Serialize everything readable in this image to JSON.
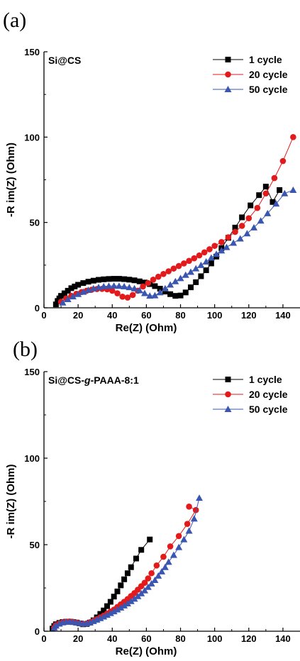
{
  "chart_data": [
    {
      "panel_label": "(a)",
      "type": "scatter",
      "title": "Si@CS",
      "xlabel": "Re(Z) (Ohm)",
      "ylabel": "-R im(Z) (Ohm)",
      "xlim": [
        0,
        150
      ],
      "ylim": [
        0,
        150
      ],
      "x_ticks": [
        0,
        20,
        40,
        60,
        80,
        100,
        120,
        140
      ],
      "y_ticks": [
        0,
        50,
        100,
        150
      ],
      "legend_position": "top-right",
      "series": [
        {
          "name": "1 cycle",
          "color": "#000000",
          "marker": "square",
          "points": [
            [
              7,
              2
            ],
            [
              8,
              4
            ],
            [
              9,
              5.5
            ],
            [
              10,
              7
            ],
            [
              12,
              8.5
            ],
            [
              14,
              10
            ],
            [
              16,
              11.5
            ],
            [
              18,
              12.5
            ],
            [
              20,
              13.5
            ],
            [
              23,
              14.5
            ],
            [
              26,
              15.3
            ],
            [
              29,
              15.9
            ],
            [
              32,
              16.4
            ],
            [
              35,
              16.7
            ],
            [
              38,
              16.9
            ],
            [
              41,
              17
            ],
            [
              44,
              17
            ],
            [
              47,
              16.8
            ],
            [
              50,
              16.5
            ],
            [
              53,
              16.1
            ],
            [
              56,
              15.5
            ],
            [
              59,
              14.8
            ],
            [
              62,
              13.9
            ],
            [
              65,
              12.7
            ],
            [
              68,
              11.2
            ],
            [
              71,
              9.5
            ],
            [
              74,
              8
            ],
            [
              77,
              7
            ],
            [
              80,
              7.2
            ],
            [
              83,
              9
            ],
            [
              86,
              12
            ],
            [
              89,
              15
            ],
            [
              92,
              18.5
            ],
            [
              95,
              22
            ],
            [
              98,
              26
            ],
            [
              101,
              30
            ],
            [
              104,
              35
            ],
            [
              108,
              41
            ],
            [
              112,
              47
            ],
            [
              116,
              53
            ],
            [
              121,
              60
            ],
            [
              126,
              66
            ],
            [
              130,
              71
            ],
            [
              134,
              62
            ],
            [
              138,
              69
            ]
          ]
        },
        {
          "name": "20 cycle",
          "color": "#e31a1c",
          "marker": "circle",
          "points": [
            [
              10,
              3.5
            ],
            [
              13,
              5.5
            ],
            [
              16,
              7
            ],
            [
              19,
              8.2
            ],
            [
              22,
              9.2
            ],
            [
              25,
              10
            ],
            [
              28,
              10.6
            ],
            [
              31,
              11
            ],
            [
              34,
              11.1
            ],
            [
              37,
              10.8
            ],
            [
              40,
              10
            ],
            [
              43,
              8.5
            ],
            [
              46,
              6.5
            ],
            [
              49,
              6
            ],
            [
              52,
              7.5
            ],
            [
              55,
              10
            ],
            [
              58,
              12.5
            ],
            [
              61,
              14.5
            ],
            [
              64,
              16.5
            ],
            [
              67,
              18.2
            ],
            [
              70,
              19.8
            ],
            [
              73,
              21.4
            ],
            [
              76,
              23
            ],
            [
              79,
              24.5
            ],
            [
              82,
              26
            ],
            [
              85,
              27.5
            ],
            [
              88,
              29
            ],
            [
              91,
              30.7
            ],
            [
              94,
              32.5
            ],
            [
              97,
              34.3
            ],
            [
              100,
              36.3
            ],
            [
              104,
              38.5
            ],
            [
              108,
              41.3
            ],
            [
              112,
              44.5
            ],
            [
              116,
              48
            ],
            [
              120,
              52.5
            ],
            [
              125,
              58.5
            ],
            [
              130,
              67
            ],
            [
              135,
              76
            ],
            [
              140,
              86
            ],
            [
              146,
              100
            ]
          ]
        },
        {
          "name": "50 cycle",
          "color": "#3a56b0",
          "marker": "triangle",
          "points": [
            [
              11,
              3
            ],
            [
              14,
              5
            ],
            [
              17,
              6.6
            ],
            [
              20,
              8
            ],
            [
              23,
              9.3
            ],
            [
              26,
              10.4
            ],
            [
              29,
              11.3
            ],
            [
              32,
              12
            ],
            [
              35,
              12.5
            ],
            [
              38,
              12.8
            ],
            [
              41,
              12.9
            ],
            [
              44,
              12.8
            ],
            [
              47,
              12.5
            ],
            [
              50,
              12
            ],
            [
              53,
              11.3
            ],
            [
              56,
              10.2
            ],
            [
              59,
              8.5
            ],
            [
              62,
              7
            ],
            [
              65,
              7.2
            ],
            [
              68,
              9
            ],
            [
              71,
              11.3
            ],
            [
              74,
              13.5
            ],
            [
              77,
              15.5
            ],
            [
              80,
              17.3
            ],
            [
              83,
              19.2
            ],
            [
              86,
              21
            ],
            [
              89,
              23
            ],
            [
              92,
              25
            ],
            [
              95,
              27
            ],
            [
              98,
              29.3
            ],
            [
              101,
              31.5
            ],
            [
              104,
              33.5
            ],
            [
              107,
              35.5
            ],
            [
              111,
              38
            ],
            [
              115,
              40.5
            ],
            [
              119,
              43.5
            ],
            [
              123,
              47
            ],
            [
              127,
              51
            ],
            [
              131,
              55.3
            ],
            [
              136,
              61
            ],
            [
              141,
              67
            ],
            [
              146,
              69
            ]
          ]
        }
      ]
    },
    {
      "panel_label": "(b)",
      "type": "scatter",
      "title": "Si@CS-g-PAAA-8:1",
      "title_parts": {
        "before": "Si@CS-",
        "italic": "g",
        "after": "-PAAA-8:1"
      },
      "xlabel": "Re(Z) (Ohm)",
      "ylabel": "-R im(Z) (Ohm)",
      "xlim": [
        0,
        150
      ],
      "ylim": [
        0,
        150
      ],
      "x_ticks": [
        0,
        20,
        40,
        60,
        80,
        100,
        120,
        140
      ],
      "y_ticks": [
        0,
        50,
        100,
        150
      ],
      "legend_position": "top-right",
      "series": [
        {
          "name": "1 cycle",
          "color": "#000000",
          "marker": "square",
          "points": [
            [
              5,
              1.5
            ],
            [
              6,
              3
            ],
            [
              7,
              4
            ],
            [
              9,
              4.8
            ],
            [
              11,
              5.3
            ],
            [
              13,
              5.5
            ],
            [
              15,
              5.5
            ],
            [
              17,
              5.3
            ],
            [
              19,
              5
            ],
            [
              21,
              4.5
            ],
            [
              23,
              4
            ],
            [
              25,
              4.2
            ],
            [
              27,
              5
            ],
            [
              29,
              6.3
            ],
            [
              31,
              8
            ],
            [
              33,
              10
            ],
            [
              35,
              12
            ],
            [
              37,
              14.5
            ],
            [
              39,
              17
            ],
            [
              41,
              20
            ],
            [
              43,
              23
            ],
            [
              45,
              26.5
            ],
            [
              47,
              30
            ],
            [
              49,
              33.5
            ],
            [
              51,
              37
            ],
            [
              54,
              42
            ],
            [
              57,
              47
            ],
            [
              62,
              53
            ]
          ]
        },
        {
          "name": "20 cycle",
          "color": "#e31a1c",
          "marker": "circle",
          "points": [
            [
              6,
              2
            ],
            [
              7,
              3.5
            ],
            [
              9,
              4.5
            ],
            [
              11,
              5.2
            ],
            [
              13,
              5.5
            ],
            [
              15,
              5.6
            ],
            [
              17,
              5.4
            ],
            [
              19,
              5
            ],
            [
              21,
              4.5
            ],
            [
              23,
              4.2
            ],
            [
              25,
              4.5
            ],
            [
              27,
              5.2
            ],
            [
              29,
              6
            ],
            [
              31,
              7
            ],
            [
              33,
              8
            ],
            [
              35,
              9
            ],
            [
              37,
              10.2
            ],
            [
              39,
              11.3
            ],
            [
              41,
              12.5
            ],
            [
              43,
              14
            ],
            [
              45,
              15.5
            ],
            [
              47,
              17
            ],
            [
              49,
              18.6
            ],
            [
              51,
              20.3
            ],
            [
              53,
              22
            ],
            [
              55,
              24
            ],
            [
              57,
              26
            ],
            [
              59,
              28
            ],
            [
              61,
              30.5
            ],
            [
              63,
              33.5
            ],
            [
              66,
              38
            ],
            [
              70,
              43
            ],
            [
              74,
              49
            ],
            [
              79,
              55
            ],
            [
              84,
              62
            ],
            [
              89,
              70
            ],
            [
              85,
              72
            ]
          ]
        },
        {
          "name": "50 cycle",
          "color": "#3a56b0",
          "marker": "triangle",
          "points": [
            [
              6,
              2
            ],
            [
              7,
              3.2
            ],
            [
              9,
              4.3
            ],
            [
              11,
              5
            ],
            [
              13,
              5.4
            ],
            [
              15,
              5.5
            ],
            [
              17,
              5.3
            ],
            [
              19,
              5
            ],
            [
              21,
              4.6
            ],
            [
              23,
              4.3
            ],
            [
              25,
              4.5
            ],
            [
              27,
              5
            ],
            [
              29,
              5.8
            ],
            [
              31,
              6.6
            ],
            [
              33,
              7.5
            ],
            [
              35,
              8.4
            ],
            [
              37,
              9.4
            ],
            [
              39,
              10.4
            ],
            [
              41,
              11.4
            ],
            [
              43,
              12.5
            ],
            [
              45,
              13.6
            ],
            [
              47,
              14.8
            ],
            [
              49,
              16
            ],
            [
              51,
              17.3
            ],
            [
              53,
              18.7
            ],
            [
              55,
              20.2
            ],
            [
              57,
              21.8
            ],
            [
              59,
              23.5
            ],
            [
              61,
              25.5
            ],
            [
              63,
              27.5
            ],
            [
              65,
              29.5
            ],
            [
              67,
              32
            ],
            [
              69,
              34.5
            ],
            [
              71,
              37
            ],
            [
              73,
              40
            ],
            [
              76,
              44
            ],
            [
              79,
              48.5
            ],
            [
              82,
              53
            ],
            [
              85,
              58
            ],
            [
              88,
              65
            ],
            [
              91,
              77
            ]
          ]
        }
      ]
    }
  ]
}
